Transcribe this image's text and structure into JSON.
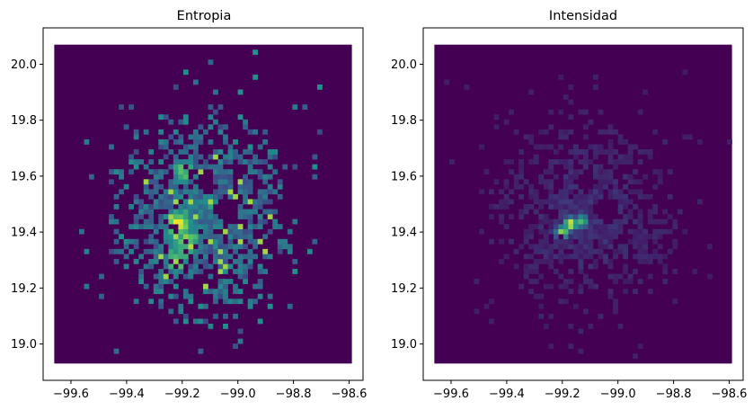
{
  "chart_data": [
    {
      "type": "heatmap",
      "title": "Entropia",
      "xlabel": "",
      "ylabel": "",
      "xlim": [
        -99.7,
        -98.55
      ],
      "ylim": [
        18.87,
        20.13
      ],
      "extent": {
        "x": [
          -99.66,
          -98.59
        ],
        "y": [
          18.93,
          20.07
        ]
      },
      "xticks": [
        -99.6,
        -99.4,
        -99.2,
        -99.0,
        -98.8,
        -98.6
      ],
      "xtick_labels": [
        "−99.6",
        "−99.4",
        "−99.2",
        "−99.0",
        "−98.8",
        "−98.6"
      ],
      "yticks": [
        19.0,
        19.2,
        19.4,
        19.6,
        19.8,
        20.0
      ],
      "ytick_labels": [
        "19.0",
        "19.2",
        "19.4",
        "19.6",
        "19.8",
        "20.0"
      ],
      "colormap": [
        "#440154",
        "#3b528b",
        "#21918c",
        "#5ec962",
        "#fde725"
      ],
      "background_color": "#440154",
      "grid": false,
      "hotspots": [
        {
          "x": -99.21,
          "y": 19.43,
          "intensity": 1.0
        },
        {
          "x": -99.18,
          "y": 19.36,
          "intensity": 0.9
        },
        {
          "x": -99.2,
          "y": 19.62,
          "intensity": 0.75
        },
        {
          "x": -99.22,
          "y": 19.3,
          "intensity": 0.8
        },
        {
          "x": -99.1,
          "y": 19.5,
          "intensity": 0.55
        },
        {
          "x": -99.0,
          "y": 19.45,
          "intensity": 0.5
        },
        {
          "x": -99.05,
          "y": 19.25,
          "intensity": 0.5
        }
      ],
      "holes": [
        {
          "x": -99.04,
          "y": 19.48,
          "radius": 0.045
        },
        {
          "x": -99.12,
          "y": 19.58,
          "radius": 0.035
        }
      ]
    },
    {
      "type": "heatmap",
      "title": "Intensidad",
      "xlabel": "",
      "ylabel": "",
      "xlim": [
        -99.7,
        -98.55
      ],
      "ylim": [
        18.87,
        20.13
      ],
      "extent": {
        "x": [
          -99.66,
          -98.59
        ],
        "y": [
          18.93,
          20.07
        ]
      },
      "xticks": [
        -99.6,
        -99.4,
        -99.2,
        -99.0,
        -98.8,
        -98.6
      ],
      "xtick_labels": [
        "−99.6",
        "−99.4",
        "−99.2",
        "−99.0",
        "−98.8",
        "−98.6"
      ],
      "yticks": [
        19.0,
        19.2,
        19.4,
        19.6,
        19.8,
        20.0
      ],
      "ytick_labels": [
        "19.0",
        "19.2",
        "19.4",
        "19.6",
        "19.8",
        "20.0"
      ],
      "colormap": [
        "#440154",
        "#3b528b",
        "#21918c",
        "#5ec962",
        "#fde725"
      ],
      "background_color": "#440154",
      "grid": false,
      "hotspots": [
        {
          "x": -99.17,
          "y": 19.43,
          "intensity": 1.0
        },
        {
          "x": -99.2,
          "y": 19.4,
          "intensity": 0.85
        },
        {
          "x": -99.13,
          "y": 19.44,
          "intensity": 0.7
        }
      ],
      "holes": [
        {
          "x": -99.04,
          "y": 19.48,
          "radius": 0.045
        },
        {
          "x": -99.12,
          "y": 19.58,
          "radius": 0.035
        }
      ]
    }
  ]
}
